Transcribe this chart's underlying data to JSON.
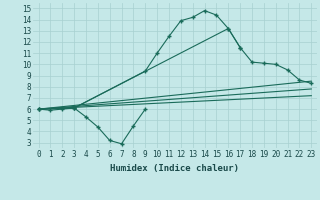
{
  "xlabel": "Humidex (Indice chaleur)",
  "bg_color": "#c5e8e8",
  "line_color": "#1a6b5a",
  "grid_color": "#a8d0d0",
  "xlim": [
    -0.5,
    23.5
  ],
  "ylim": [
    2.5,
    15.5
  ],
  "xticks": [
    0,
    1,
    2,
    3,
    4,
    5,
    6,
    7,
    8,
    9,
    10,
    11,
    12,
    13,
    14,
    15,
    16,
    17,
    18,
    19,
    20,
    21,
    22,
    23
  ],
  "yticks": [
    3,
    4,
    5,
    6,
    7,
    8,
    9,
    10,
    11,
    12,
    13,
    14,
    15
  ],
  "curve1_x": [
    0,
    1,
    2,
    3,
    4,
    5,
    6,
    7,
    8,
    9
  ],
  "curve1_y": [
    6.0,
    5.9,
    6.0,
    6.1,
    5.3,
    4.4,
    3.2,
    2.9,
    4.5,
    6.0
  ],
  "curve2_x": [
    0,
    3,
    9,
    10,
    11,
    12,
    13,
    14,
    15,
    16,
    17
  ],
  "curve2_y": [
    6.0,
    6.1,
    9.4,
    11.0,
    12.5,
    13.9,
    14.2,
    14.8,
    14.4,
    13.2,
    11.5
  ],
  "curve3_x": [
    0,
    3,
    16,
    17,
    18,
    19,
    20,
    21,
    22,
    23
  ],
  "curve3_y": [
    6.0,
    6.1,
    13.2,
    11.5,
    10.2,
    10.1,
    10.0,
    9.5,
    8.6,
    8.3
  ],
  "line1_x": [
    0,
    23
  ],
  "line1_y": [
    6.0,
    8.5
  ],
  "line2_x": [
    0,
    23
  ],
  "line2_y": [
    6.0,
    7.8
  ],
  "line3_x": [
    0,
    23
  ],
  "line3_y": [
    6.0,
    7.2
  ],
  "dpi": 100,
  "tick_fontsize": 5.5,
  "xlabel_fontsize": 6.5
}
